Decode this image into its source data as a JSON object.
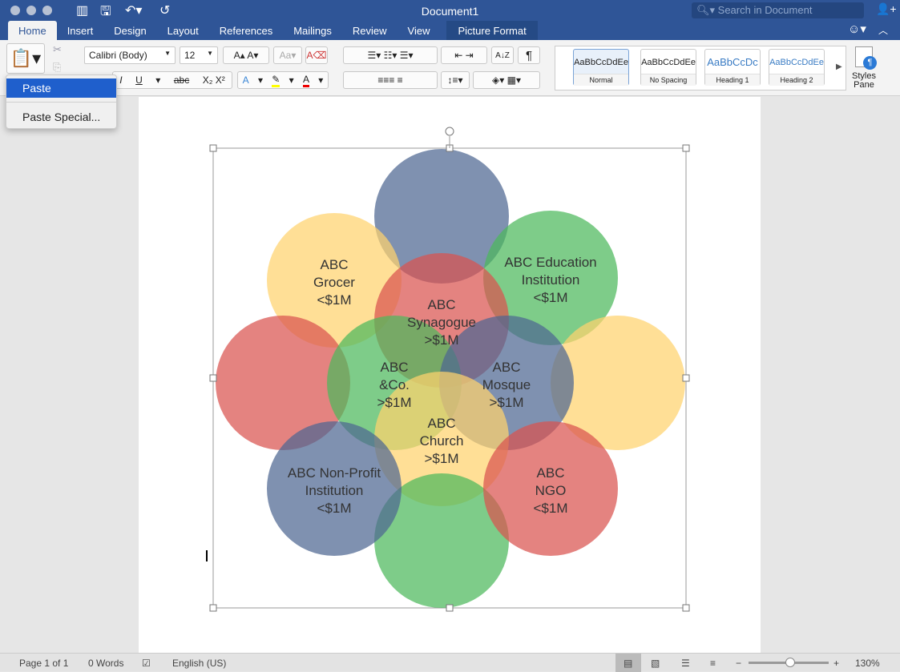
{
  "window": {
    "title": "Document1",
    "search_placeholder": "Search in Document"
  },
  "tabs": [
    "Home",
    "Insert",
    "Design",
    "Layout",
    "References",
    "Mailings",
    "Review",
    "View",
    "Picture Format"
  ],
  "active_tab": "Home",
  "ribbon": {
    "font_name": "Calibri (Body)",
    "font_size": "12",
    "styles": [
      {
        "sample": "AaBbCcDdEe",
        "name": "Normal"
      },
      {
        "sample": "AaBbCcDdEe",
        "name": "No Spacing"
      },
      {
        "sample": "AaBbCcDc",
        "name": "Heading 1"
      },
      {
        "sample": "AaBbCcDdEe",
        "name": "Heading 2"
      }
    ],
    "styles_pane": "Styles Pane"
  },
  "paste_menu": {
    "items": [
      "Paste",
      "Paste Special..."
    ]
  },
  "diagram": {
    "colors": {
      "blue": "#4d6791",
      "yellow": "#ffd36e",
      "green": "#4cb85c",
      "red": "#d9534f"
    },
    "circles": [
      {
        "color": "blue",
        "label": []
      },
      {
        "color": "yellow",
        "label": [
          "ABC",
          "Grocer",
          "<$1M"
        ]
      },
      {
        "color": "green",
        "label": [
          "ABC Education",
          "Institution",
          "<$1M"
        ]
      },
      {
        "color": "red",
        "label": [
          "ABC",
          "Synagogue",
          ">$1M"
        ]
      },
      {
        "color": "red",
        "label": []
      },
      {
        "color": "yellow",
        "label": []
      },
      {
        "color": "green",
        "label": [
          "ABC",
          "&Co.",
          ">$1M"
        ]
      },
      {
        "color": "blue",
        "label": [
          "ABC",
          "Mosque",
          ">$1M"
        ]
      },
      {
        "color": "yellow",
        "label": [
          "ABC",
          "Church",
          ">$1M"
        ]
      },
      {
        "color": "green",
        "label": []
      },
      {
        "color": "blue",
        "label": [
          "ABC Non-Profit",
          "Institution",
          "<$1M"
        ]
      },
      {
        "color": "red",
        "label": [
          "ABC",
          "NGO",
          "<$1M"
        ]
      }
    ]
  },
  "status": {
    "page": "Page 1 of 1",
    "words": "0 Words",
    "language": "English (US)",
    "zoom": "130%",
    "zoom_percent": 130
  }
}
